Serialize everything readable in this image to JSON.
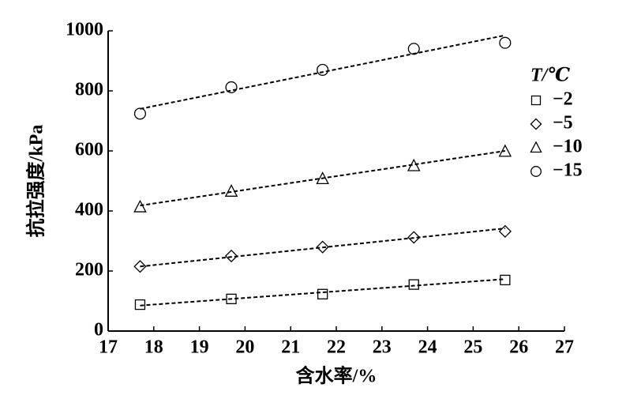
{
  "chart_data": {
    "type": "scatter",
    "x_label": "含水率/%",
    "y_label": "抗拉强度/kPa",
    "x": [
      17.7,
      19.7,
      21.7,
      23.7,
      25.7
    ],
    "fit_x": [
      17.7,
      25.7
    ],
    "legend_title": "T/℃",
    "legend_position": "right",
    "series": [
      {
        "name": "−2",
        "marker": "square",
        "color": "#000000",
        "values": [
          88,
          107,
          123,
          155,
          170
        ],
        "fit": [
          85,
          173
        ]
      },
      {
        "name": "−5",
        "marker": "diamond",
        "color": "#000000",
        "values": [
          215,
          250,
          280,
          312,
          332
        ],
        "fit": [
          215,
          342
        ]
      },
      {
        "name": "−10",
        "marker": "triangle",
        "color": "#000000",
        "values": [
          413,
          465,
          507,
          550,
          598
        ],
        "fit": [
          418,
          600
        ]
      },
      {
        "name": "−15",
        "marker": "circle",
        "color": "#000000",
        "values": [
          724,
          812,
          870,
          940,
          960
        ],
        "fit": [
          740,
          985
        ]
      }
    ],
    "xlim": [
      17,
      27
    ],
    "xticks": [
      17,
      18,
      19,
      20,
      21,
      22,
      23,
      24,
      25,
      26,
      27
    ],
    "ylim": [
      0,
      1000
    ],
    "yticks": [
      0,
      200,
      400,
      600,
      800,
      1000
    ],
    "grid": false
  }
}
